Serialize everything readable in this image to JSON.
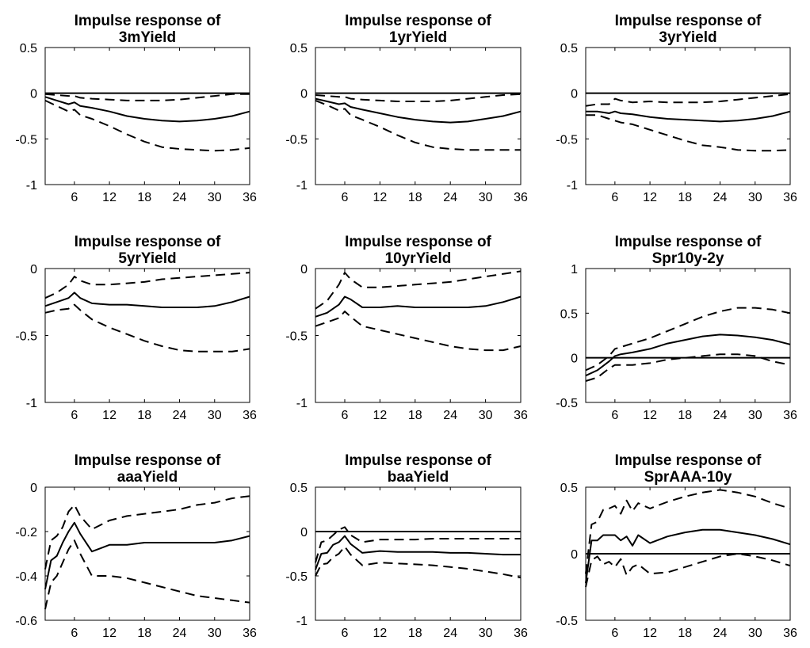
{
  "chart_data": [
    {
      "type": "line",
      "title": [
        "Impulse response of",
        "3mYield"
      ],
      "xlim": [
        1,
        36
      ],
      "ylim": [
        -1,
        0.5
      ],
      "xticks": [
        "6",
        "12",
        "18",
        "24",
        "30",
        "36"
      ],
      "yticks": [
        "0.5",
        "0",
        "-0.5",
        "-1"
      ],
      "zero_line": true,
      "grid": false,
      "x": [
        1,
        3,
        5,
        6,
        7,
        9,
        12,
        15,
        18,
        21,
        24,
        27,
        30,
        33,
        36
      ],
      "series": [
        {
          "style": "solid",
          "values": [
            -0.04,
            -0.08,
            -0.12,
            -0.1,
            -0.14,
            -0.16,
            -0.2,
            -0.25,
            -0.28,
            -0.3,
            -0.31,
            -0.3,
            -0.28,
            -0.25,
            -0.2
          ]
        },
        {
          "style": "dashed",
          "values": [
            -0.01,
            -0.02,
            -0.03,
            -0.03,
            -0.05,
            -0.06,
            -0.07,
            -0.08,
            -0.08,
            -0.08,
            -0.07,
            -0.05,
            -0.03,
            -0.01,
            -0.01
          ]
        },
        {
          "style": "dashed",
          "values": [
            -0.08,
            -0.14,
            -0.2,
            -0.18,
            -0.24,
            -0.28,
            -0.36,
            -0.45,
            -0.53,
            -0.59,
            -0.61,
            -0.62,
            -0.63,
            -0.62,
            -0.6
          ]
        }
      ]
    },
    {
      "type": "line",
      "title": [
        "Impulse response of",
        "1yrYield"
      ],
      "xlim": [
        1,
        36
      ],
      "ylim": [
        -1,
        0.5
      ],
      "xticks": [
        "6",
        "12",
        "18",
        "24",
        "30",
        "36"
      ],
      "yticks": [
        "0.5",
        "0",
        "-0.5",
        "-1"
      ],
      "zero_line": true,
      "grid": false,
      "x": [
        1,
        3,
        5,
        6,
        7,
        9,
        12,
        15,
        18,
        21,
        24,
        27,
        30,
        33,
        36
      ],
      "series": [
        {
          "style": "solid",
          "values": [
            -0.06,
            -0.09,
            -0.12,
            -0.11,
            -0.15,
            -0.18,
            -0.22,
            -0.26,
            -0.29,
            -0.31,
            -0.32,
            -0.31,
            -0.28,
            -0.25,
            -0.2
          ]
        },
        {
          "style": "dashed",
          "values": [
            -0.02,
            -0.03,
            -0.04,
            -0.04,
            -0.06,
            -0.07,
            -0.08,
            -0.09,
            -0.09,
            -0.09,
            -0.08,
            -0.06,
            -0.04,
            -0.02,
            -0.01
          ]
        },
        {
          "style": "dashed",
          "values": [
            -0.08,
            -0.13,
            -0.19,
            -0.17,
            -0.24,
            -0.29,
            -0.37,
            -0.46,
            -0.54,
            -0.59,
            -0.61,
            -0.62,
            -0.62,
            -0.62,
            -0.62
          ]
        }
      ]
    },
    {
      "type": "line",
      "title": [
        "Impulse response of",
        "3yrYield"
      ],
      "xlim": [
        1,
        36
      ],
      "ylim": [
        -1,
        0.5
      ],
      "xticks": [
        "6",
        "12",
        "18",
        "24",
        "30",
        "36"
      ],
      "yticks": [
        "0.5",
        "0",
        "-0.5",
        "-1"
      ],
      "zero_line": true,
      "grid": false,
      "x": [
        1,
        3,
        5,
        6,
        7,
        9,
        12,
        15,
        18,
        21,
        24,
        27,
        30,
        33,
        36
      ],
      "series": [
        {
          "style": "solid",
          "values": [
            -0.2,
            -0.2,
            -0.22,
            -0.2,
            -0.22,
            -0.23,
            -0.26,
            -0.28,
            -0.29,
            -0.3,
            -0.31,
            -0.3,
            -0.28,
            -0.25,
            -0.2
          ]
        },
        {
          "style": "dashed",
          "values": [
            -0.14,
            -0.12,
            -0.12,
            -0.06,
            -0.08,
            -0.1,
            -0.09,
            -0.1,
            -0.1,
            -0.1,
            -0.09,
            -0.07,
            -0.05,
            -0.03,
            -0.01
          ]
        },
        {
          "style": "dashed",
          "values": [
            -0.24,
            -0.24,
            -0.28,
            -0.3,
            -0.32,
            -0.34,
            -0.4,
            -0.46,
            -0.52,
            -0.57,
            -0.59,
            -0.62,
            -0.63,
            -0.63,
            -0.62
          ]
        }
      ]
    },
    {
      "type": "line",
      "title": [
        "Impulse response of",
        "5yrYield"
      ],
      "xlim": [
        1,
        36
      ],
      "ylim": [
        -1,
        0
      ],
      "xticks": [
        "6",
        "12",
        "18",
        "24",
        "30",
        "36"
      ],
      "yticks": [
        "0",
        "-0.5",
        "-1"
      ],
      "zero_line": false,
      "grid": false,
      "x": [
        1,
        3,
        5,
        6,
        7,
        9,
        12,
        15,
        18,
        21,
        24,
        27,
        30,
        33,
        36
      ],
      "series": [
        {
          "style": "solid",
          "values": [
            -0.28,
            -0.25,
            -0.22,
            -0.18,
            -0.22,
            -0.26,
            -0.27,
            -0.27,
            -0.28,
            -0.29,
            -0.29,
            -0.29,
            -0.28,
            -0.25,
            -0.21
          ]
        },
        {
          "style": "dashed",
          "values": [
            -0.22,
            -0.18,
            -0.12,
            -0.06,
            -0.09,
            -0.12,
            -0.12,
            -0.11,
            -0.1,
            -0.08,
            -0.07,
            -0.06,
            -0.05,
            -0.04,
            -0.03
          ]
        },
        {
          "style": "dashed",
          "values": [
            -0.33,
            -0.31,
            -0.3,
            -0.27,
            -0.31,
            -0.38,
            -0.44,
            -0.49,
            -0.54,
            -0.58,
            -0.61,
            -0.62,
            -0.62,
            -0.62,
            -0.6
          ]
        }
      ]
    },
    {
      "type": "line",
      "title": [
        "Impulse response of",
        "10yrYield"
      ],
      "xlim": [
        1,
        36
      ],
      "ylim": [
        -1,
        0
      ],
      "xticks": [
        "6",
        "12",
        "18",
        "24",
        "30",
        "36"
      ],
      "yticks": [
        "0",
        "-0.5",
        "-1"
      ],
      "zero_line": false,
      "grid": false,
      "x": [
        1,
        3,
        5,
        6,
        7,
        9,
        12,
        15,
        18,
        21,
        24,
        27,
        30,
        33,
        36
      ],
      "series": [
        {
          "style": "solid",
          "values": [
            -0.36,
            -0.33,
            -0.27,
            -0.21,
            -0.23,
            -0.29,
            -0.29,
            -0.28,
            -0.29,
            -0.29,
            -0.29,
            -0.29,
            -0.28,
            -0.25,
            -0.21
          ]
        },
        {
          "style": "dashed",
          "values": [
            -0.3,
            -0.24,
            -0.12,
            -0.03,
            -0.08,
            -0.14,
            -0.14,
            -0.13,
            -0.12,
            -0.11,
            -0.1,
            -0.08,
            -0.06,
            -0.04,
            -0.02
          ]
        },
        {
          "style": "dashed",
          "values": [
            -0.43,
            -0.4,
            -0.37,
            -0.32,
            -0.36,
            -0.43,
            -0.46,
            -0.49,
            -0.52,
            -0.55,
            -0.58,
            -0.6,
            -0.61,
            -0.61,
            -0.58
          ]
        }
      ]
    },
    {
      "type": "line",
      "title": [
        "Impulse response of",
        "Spr10y-2y"
      ],
      "xlim": [
        1,
        36
      ],
      "ylim": [
        -0.5,
        1
      ],
      "xticks": [
        "6",
        "12",
        "18",
        "24",
        "30",
        "36"
      ],
      "yticks": [
        "1",
        "0.5",
        "0",
        "-0.5"
      ],
      "zero_line": true,
      "grid": false,
      "x": [
        1,
        3,
        5,
        6,
        7,
        9,
        12,
        15,
        18,
        21,
        24,
        27,
        30,
        33,
        36
      ],
      "series": [
        {
          "style": "solid",
          "values": [
            -0.2,
            -0.14,
            -0.04,
            0.02,
            0.04,
            0.06,
            0.1,
            0.16,
            0.2,
            0.24,
            0.26,
            0.25,
            0.23,
            0.2,
            0.15
          ]
        },
        {
          "style": "dashed",
          "values": [
            -0.14,
            -0.08,
            0.02,
            0.1,
            0.12,
            0.16,
            0.22,
            0.3,
            0.38,
            0.46,
            0.52,
            0.56,
            0.56,
            0.54,
            0.5
          ]
        },
        {
          "style": "dashed",
          "values": [
            -0.26,
            -0.22,
            -0.12,
            -0.08,
            -0.08,
            -0.08,
            -0.06,
            -0.02,
            0.0,
            0.02,
            0.04,
            0.04,
            0.02,
            -0.04,
            -0.08
          ]
        }
      ]
    },
    {
      "type": "line",
      "title": [
        "Impulse response of",
        "aaaYield"
      ],
      "xlim": [
        1,
        36
      ],
      "ylim": [
        -0.6,
        0
      ],
      "xticks": [
        "6",
        "12",
        "18",
        "24",
        "30",
        "36"
      ],
      "yticks": [
        "0",
        "-0.2",
        "-0.4",
        "-0.6"
      ],
      "zero_line": false,
      "grid": false,
      "x": [
        1,
        2,
        3,
        4,
        5,
        6,
        7,
        9,
        12,
        15,
        18,
        21,
        24,
        27,
        30,
        33,
        36
      ],
      "series": [
        {
          "style": "solid",
          "values": [
            -0.46,
            -0.33,
            -0.31,
            -0.25,
            -0.2,
            -0.16,
            -0.21,
            -0.29,
            -0.26,
            -0.26,
            -0.25,
            -0.25,
            -0.25,
            -0.25,
            -0.25,
            -0.24,
            -0.22
          ]
        },
        {
          "style": "dashed",
          "values": [
            -0.37,
            -0.24,
            -0.22,
            -0.18,
            -0.11,
            -0.08,
            -0.13,
            -0.19,
            -0.15,
            -0.13,
            -0.12,
            -0.11,
            -0.1,
            -0.08,
            -0.07,
            -0.05,
            -0.04
          ]
        },
        {
          "style": "dashed",
          "values": [
            -0.55,
            -0.43,
            -0.4,
            -0.34,
            -0.28,
            -0.24,
            -0.3,
            -0.4,
            -0.4,
            -0.41,
            -0.43,
            -0.45,
            -0.47,
            -0.49,
            -0.5,
            -0.51,
            -0.52
          ]
        }
      ]
    },
    {
      "type": "line",
      "title": [
        "Impulse response of",
        "baaYield"
      ],
      "xlim": [
        1,
        36
      ],
      "ylim": [
        -1,
        0.5
      ],
      "xticks": [
        "6",
        "12",
        "18",
        "24",
        "30",
        "36"
      ],
      "yticks": [
        "0.5",
        "0",
        "-0.5",
        "-1"
      ],
      "zero_line": true,
      "grid": false,
      "x": [
        1,
        2,
        3,
        4,
        5,
        6,
        7,
        9,
        12,
        15,
        18,
        21,
        24,
        27,
        30,
        33,
        36
      ],
      "series": [
        {
          "style": "solid",
          "values": [
            -0.43,
            -0.25,
            -0.24,
            -0.15,
            -0.12,
            -0.05,
            -0.14,
            -0.24,
            -0.22,
            -0.23,
            -0.23,
            -0.23,
            -0.24,
            -0.24,
            -0.25,
            -0.26,
            -0.26
          ]
        },
        {
          "style": "dashed",
          "values": [
            -0.35,
            -0.12,
            -0.1,
            -0.04,
            0.02,
            0.05,
            -0.04,
            -0.12,
            -0.09,
            -0.09,
            -0.09,
            -0.08,
            -0.08,
            -0.08,
            -0.08,
            -0.08,
            -0.08
          ]
        },
        {
          "style": "dashed",
          "values": [
            -0.5,
            -0.37,
            -0.36,
            -0.29,
            -0.25,
            -0.17,
            -0.26,
            -0.38,
            -0.35,
            -0.36,
            -0.37,
            -0.38,
            -0.4,
            -0.42,
            -0.45,
            -0.48,
            -0.52
          ]
        }
      ]
    },
    {
      "type": "line",
      "title": [
        "Impulse response of",
        "SprAAA-10y"
      ],
      "xlim": [
        1,
        36
      ],
      "ylim": [
        -0.5,
        0.5
      ],
      "xticks": [
        "6",
        "12",
        "18",
        "24",
        "30",
        "36"
      ],
      "yticks": [
        "0.5",
        "0",
        "-0.5"
      ],
      "zero_line": true,
      "grid": false,
      "x": [
        1,
        2,
        3,
        4,
        5,
        6,
        7,
        8,
        9,
        10,
        12,
        15,
        18,
        21,
        24,
        27,
        30,
        33,
        36
      ],
      "series": [
        {
          "style": "solid",
          "values": [
            -0.22,
            0.1,
            0.1,
            0.14,
            0.14,
            0.14,
            0.1,
            0.13,
            0.06,
            0.14,
            0.08,
            0.13,
            0.16,
            0.18,
            0.18,
            0.16,
            0.14,
            0.11,
            0.07
          ]
        },
        {
          "style": "dashed",
          "values": [
            -0.15,
            0.22,
            0.24,
            0.33,
            0.34,
            0.36,
            0.3,
            0.4,
            0.32,
            0.38,
            0.34,
            0.39,
            0.43,
            0.46,
            0.48,
            0.46,
            0.43,
            0.38,
            0.34
          ]
        },
        {
          "style": "dashed",
          "values": [
            -0.25,
            -0.05,
            -0.02,
            -0.08,
            -0.06,
            -0.1,
            -0.04,
            -0.16,
            -0.1,
            -0.08,
            -0.15,
            -0.14,
            -0.1,
            -0.06,
            -0.02,
            0.0,
            -0.02,
            -0.05,
            -0.09
          ]
        }
      ]
    }
  ]
}
